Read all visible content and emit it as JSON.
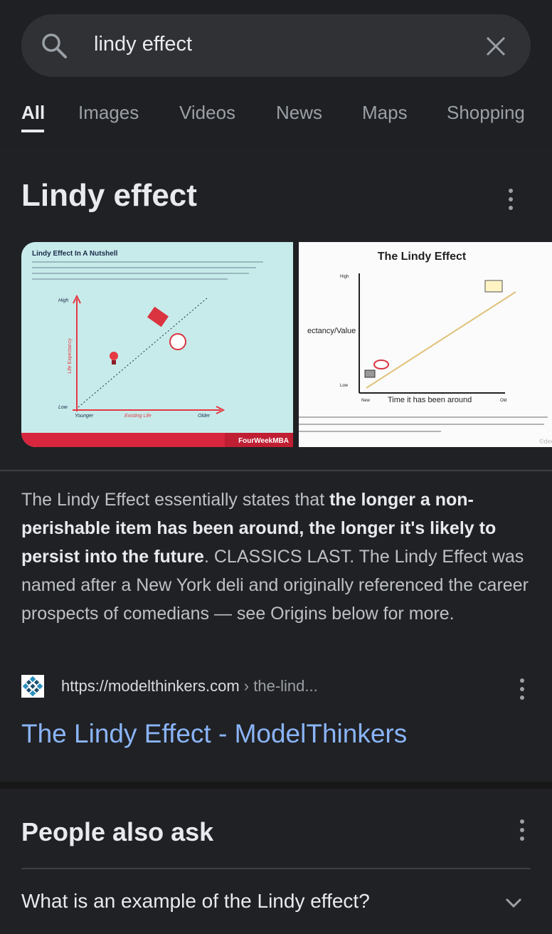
{
  "search": {
    "query": "lindy effect"
  },
  "tabs": [
    "All",
    "Images",
    "Videos",
    "News",
    "Maps",
    "Shopping"
  ],
  "knowledge_panel": {
    "title": "Lindy effect",
    "images": [
      {
        "title": "Lindy Effect In A Nutshell",
        "y_axis": "Life Expectancy",
        "high": "High",
        "low": "Low",
        "x_start": "Younger",
        "x_axis": "Existing Life",
        "x_end": "Older",
        "brand": "FourWeekMBA"
      },
      {
        "title": "The Lindy Effect",
        "y_axis": "ectancy/Value",
        "high": "High",
        "low": "Low",
        "x_start": "New",
        "x_axis": "Time it has been around",
        "x_end": "Old",
        "brand": "©deepu"
      }
    ],
    "description": [
      {
        "text": "The Lindy Effect essentially states that ",
        "bold": false
      },
      {
        "text": "the longer a non-perishable item has been around, the longer it's likely to persist into the future",
        "bold": true
      },
      {
        "text": ". CLASSICS LAST. The Lindy Effect was named after a New York deli and originally referenced the career prospects of comedians — see Origins below for more.",
        "bold": false
      }
    ]
  },
  "source": {
    "url": "https://modelthinkers.com",
    "path": "› the-lind...",
    "title": "The Lindy Effect - ModelThinkers"
  },
  "people_also_ask": {
    "title": "People also ask",
    "questions": [
      "What is an example of the Lindy effect?"
    ]
  }
}
